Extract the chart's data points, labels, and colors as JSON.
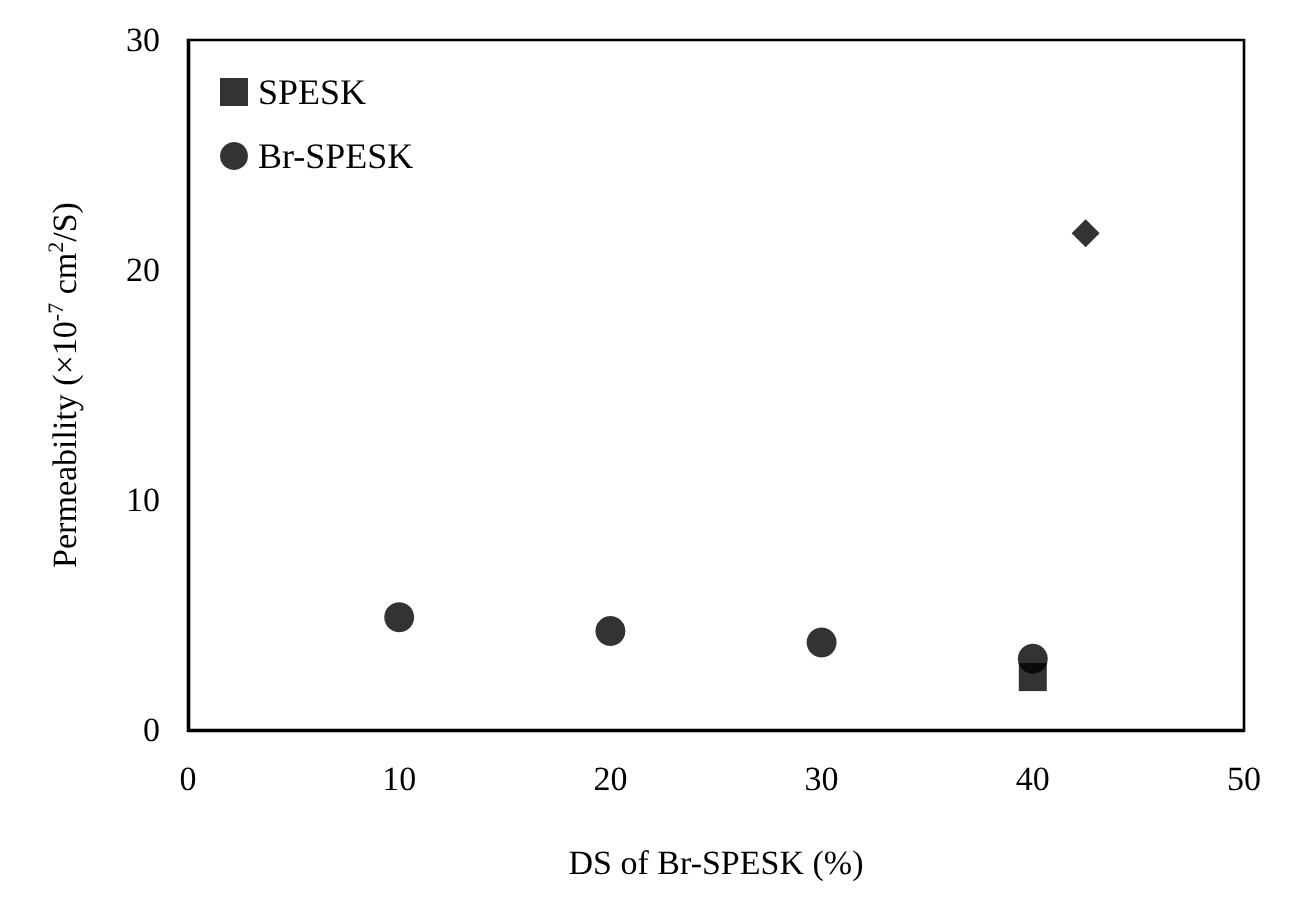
{
  "chart_data": {
    "type": "scatter",
    "xlabel": "DS of Br-SPESK (%)",
    "ylabel": "Permeability (×10$^{-7}$ cm$^{2}$/S)",
    "xlim": [
      0,
      50
    ],
    "xticks": [
      0,
      10,
      20,
      30,
      40,
      50
    ],
    "ylim": [
      0,
      30
    ],
    "yticks": [
      0,
      10,
      20,
      30
    ],
    "grid": false,
    "legend": "top left",
    "series": [
      {
        "color": "#000000",
        "marker": "diamond",
        "x": [
          42.5
        ],
        "values": [
          21.6
        ]
      },
      {
        "name": "SPESK",
        "color": "#000000",
        "marker": "square",
        "x": [
          40
        ],
        "values": [
          2.3
        ]
      },
      {
        "name": "Br-SPESK",
        "color": "#000000",
        "marker": "circle",
        "x": [
          10,
          20,
          30,
          40
        ],
        "values": [
          4.9,
          4.3,
          3.8,
          3.1
        ]
      }
    ]
  }
}
